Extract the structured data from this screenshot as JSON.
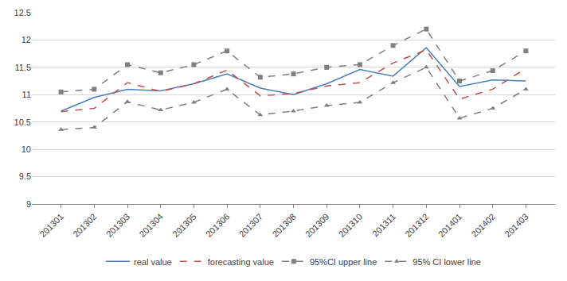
{
  "chart_data": {
    "type": "line",
    "categories": [
      "201301",
      "201302",
      "201303",
      "201304",
      "201305",
      "201306",
      "201307",
      "201308",
      "201309",
      "201310",
      "201311",
      "201312",
      "201401",
      "201402",
      "201403"
    ],
    "series": [
      {
        "name": "real value",
        "color": "#4a7ebb",
        "line_style": "solid",
        "values": [
          10.7,
          10.95,
          11.1,
          11.07,
          11.2,
          11.38,
          11.12,
          11.0,
          11.2,
          11.46,
          11.34,
          11.86,
          11.15,
          11.27,
          11.25
        ]
      },
      {
        "name": "forecasting value",
        "color": "#c0504d",
        "line_style": "dashed",
        "values": [
          10.69,
          10.75,
          11.22,
          11.06,
          11.2,
          11.45,
          10.98,
          11.02,
          11.16,
          11.22,
          11.58,
          11.82,
          10.92,
          11.1,
          11.48
        ]
      },
      {
        "name": "95%CI upper line",
        "color": "#7f7f7f",
        "line_style": "dashed",
        "marker": "square",
        "values": [
          11.05,
          11.1,
          11.55,
          11.4,
          11.55,
          11.8,
          11.32,
          11.38,
          11.5,
          11.55,
          11.9,
          12.2,
          11.25,
          11.44,
          11.8
        ]
      },
      {
        "name": "95% CI lower line",
        "color": "#7f7f7f",
        "line_style": "dashed",
        "marker": "triangle-up",
        "values": [
          10.36,
          10.4,
          10.87,
          10.72,
          10.86,
          11.1,
          10.63,
          10.7,
          10.8,
          10.86,
          11.22,
          11.5,
          10.57,
          10.75,
          11.1
        ]
      }
    ],
    "ylim": [
      9,
      12.5
    ],
    "yticks": [
      9,
      9.5,
      10,
      10.5,
      11,
      11.5,
      12,
      12.5
    ],
    "grid": true,
    "legend": "bottom"
  }
}
